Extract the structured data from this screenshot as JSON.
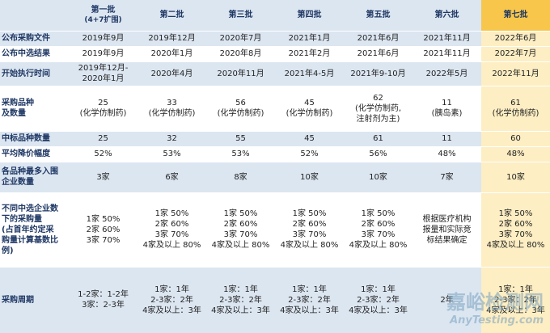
{
  "table": {
    "columns": [
      {
        "name": "第一批",
        "note": "(4+7扩围)"
      },
      {
        "name": "第二批"
      },
      {
        "name": "第三批"
      },
      {
        "name": "第四批"
      },
      {
        "name": "第五批"
      },
      {
        "name": "第六批"
      },
      {
        "name": "第七批"
      }
    ],
    "rows": [
      {
        "label": "公布采购文件",
        "cells": [
          "2019年9月",
          "2019年12月",
          "2020年7月",
          "2021年1月",
          "2021年6月",
          "2021年11月",
          "2022年6月"
        ]
      },
      {
        "label": "公布中选结果",
        "cells": [
          "2019年9月",
          "2020年1月",
          "2020年8月",
          "2021年2月",
          "2021年6月",
          "2021年11月",
          "2022年7月"
        ]
      },
      {
        "label": "开始执行时间",
        "cells": [
          "2019年12月-\n2020年1月",
          "2020年4月",
          "2020年11月",
          "2021年4-5月",
          "2021年9-10月",
          "2022年5月",
          "2022年11月"
        ]
      },
      {
        "label": "采购品种\n及数量",
        "cells": [
          "25\n(化学仿制药)",
          "33\n(化学仿制药)",
          "56\n(化学仿制药)",
          "45\n(化学仿制药)",
          "62\n(化学仿制药,\n注射剂为主)",
          "11\n(胰岛素)",
          "61\n(化学仿制药)"
        ]
      },
      {
        "label": "中标品种数量",
        "cells": [
          "25",
          "32",
          "55",
          "45",
          "61",
          "11",
          "60"
        ]
      },
      {
        "label": "平均降价幅度",
        "cells": [
          "52%",
          "53%",
          "53%",
          "52%",
          "56%",
          "48%",
          "48%"
        ]
      },
      {
        "label": "各品种最多入围\n企业数量",
        "cells": [
          "3家",
          "6家",
          "8家",
          "10家",
          "10家",
          "7家",
          "10家"
        ]
      },
      {
        "label": "不同中选企业数\n下的采购量\n(占首年约定采\n购量计算基数比\n例)",
        "cells": [
          "1家 50%\n2家 60%\n3家 70%",
          "1家 50%\n2家 60%\n3家 70%\n4家及以上 80%",
          "1家 50%\n2家 60%\n3家 70%\n4家及以上 80%",
          "1家 50%\n2家 60%\n3家 70%\n4家及以上 80%",
          "1家 50%\n2家 60%\n3家 70%\n4家及以上 80%",
          "根据医疗机构\n报量和实际竞\n标结果确定",
          "1家 50%\n2家 60%\n3家 70%\n4家及以上 80%"
        ]
      },
      {
        "label": "采购周期",
        "cells": [
          "1-2家：1-2年\n3家：2-3年",
          "1家：1年\n2-3家：2年\n4家及以上：3年",
          "1家：1年\n2-3家：2年\n4家及以上：3年",
          "1家：1年\n2-3家：2年\n4家及以上：3年",
          "1家：1年\n2-3家：2年\n4家及以上：3年",
          "2年",
          "1家：1年\n2-3家：2年\n4家及以上：3年"
        ]
      }
    ]
  },
  "watermark": {
    "title": "嘉峪检测网",
    "subtitle": "AnyTesting.com"
  }
}
